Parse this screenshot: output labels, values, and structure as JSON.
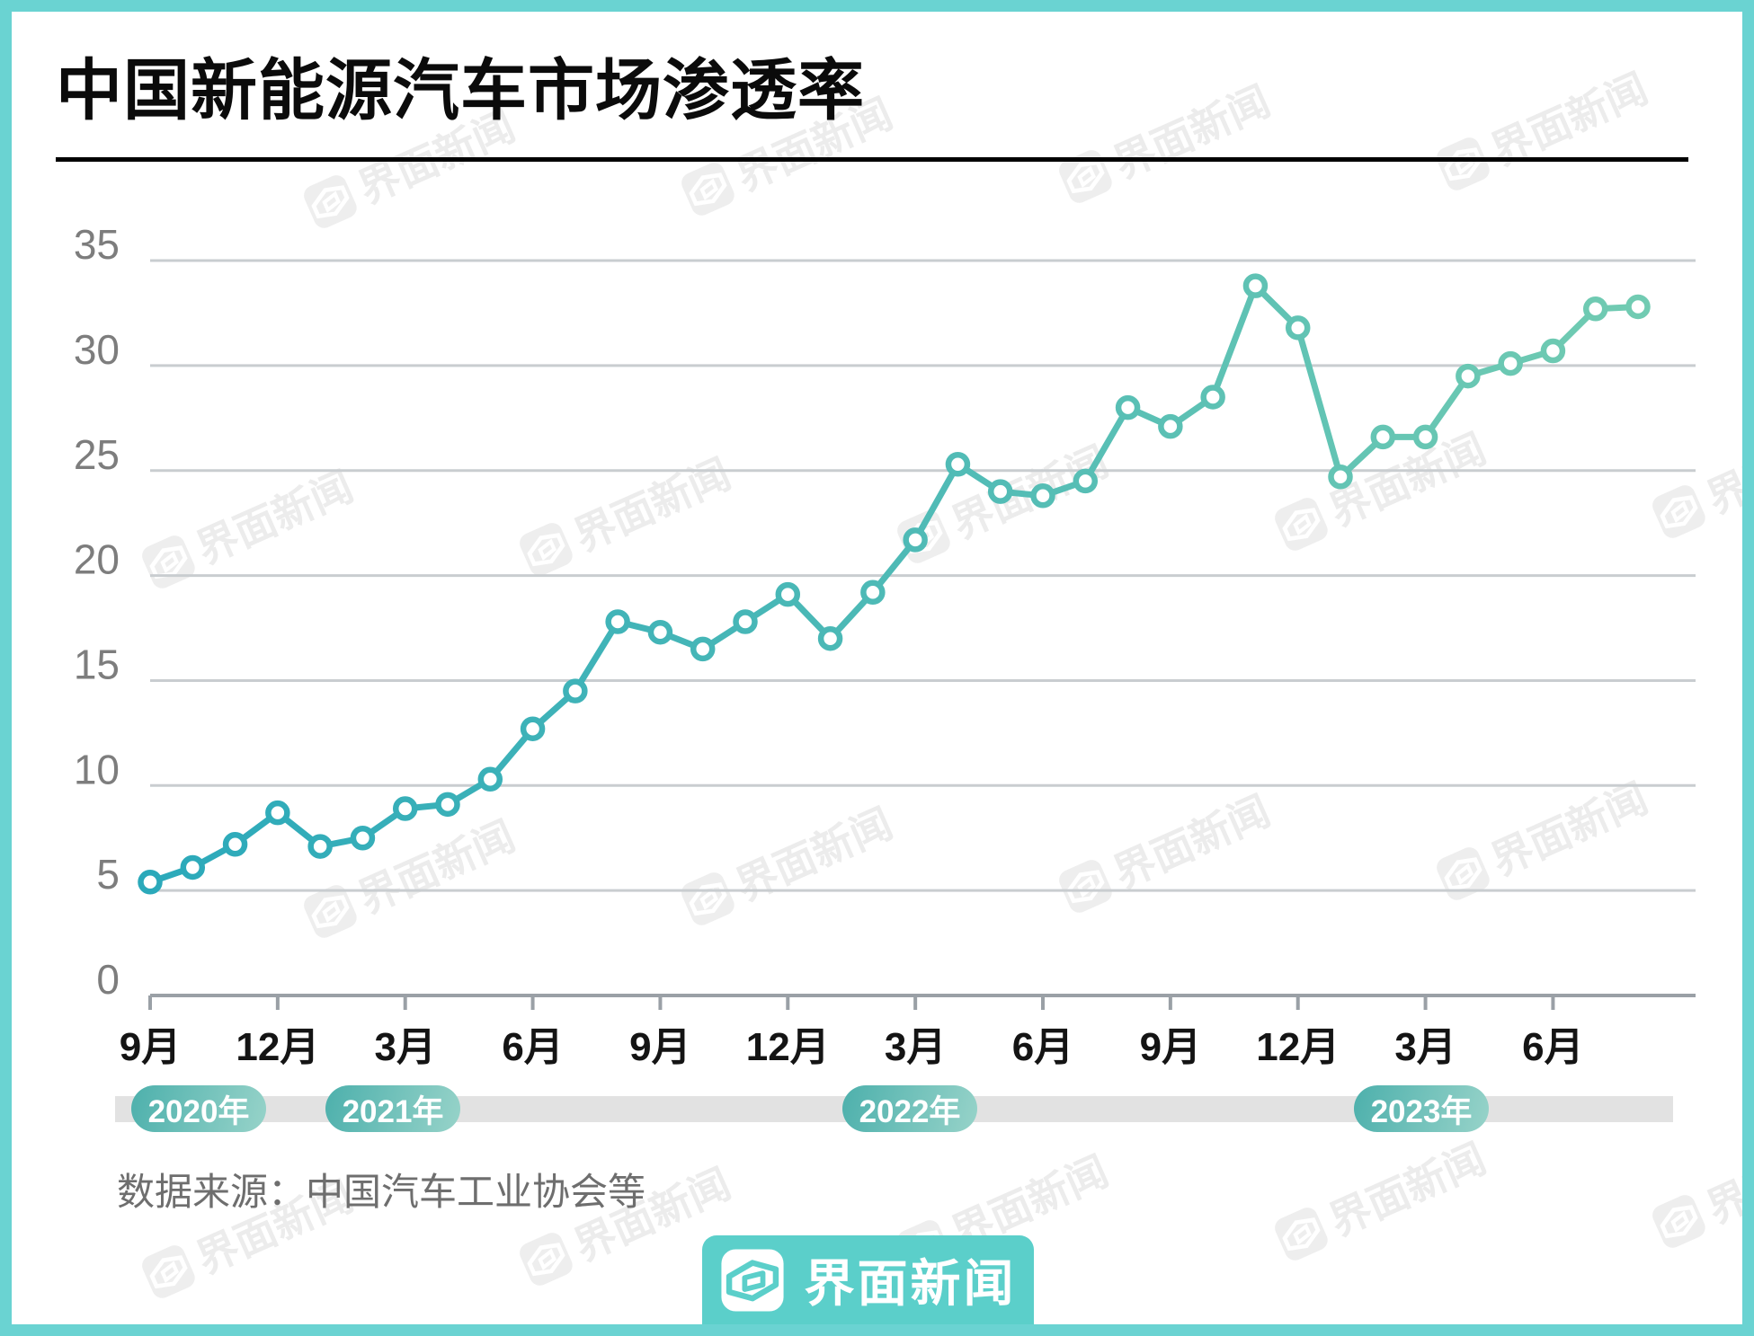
{
  "page": {
    "title": "中国新能源汽车市场渗透率"
  },
  "chart_data": {
    "type": "line",
    "title": "中国新能源汽车市场渗透率",
    "unit": "%",
    "x_start": "2020年9月",
    "x_end": "2023年8月",
    "x_tick_every": 3,
    "x_tick_labels": [
      "9月",
      "12月",
      "3月",
      "6月",
      "9月",
      "12月",
      "3月",
      "6月",
      "9月",
      "12月",
      "3月",
      "6月"
    ],
    "values": [
      5.4,
      6.1,
      7.2,
      8.7,
      7.1,
      7.5,
      8.9,
      9.1,
      10.3,
      12.7,
      14.5,
      17.8,
      17.3,
      16.5,
      17.8,
      19.1,
      17.0,
      19.2,
      21.7,
      25.3,
      24.0,
      23.8,
      24.5,
      28.0,
      27.1,
      28.5,
      33.8,
      31.8,
      24.7,
      26.6,
      26.6,
      29.5,
      30.1,
      30.7,
      32.7,
      32.8
    ],
    "ylim": [
      0,
      35
    ],
    "yticks": [
      0,
      5,
      10,
      15,
      20,
      25,
      30,
      35
    ],
    "grid": true,
    "legend": "none"
  },
  "year_bar": {
    "items": [
      {
        "label": "2020年"
      },
      {
        "label": "2021年"
      },
      {
        "label": "2022年"
      },
      {
        "label": "2023年"
      }
    ]
  },
  "source": {
    "text": "数据来源：中国汽车工业协会等"
  },
  "footer": {
    "brand": "界面新闻"
  },
  "watermark": {
    "text": "界面新闻"
  },
  "colors": {
    "border_teal": "#6ad3d2",
    "footer_teal": "#5bcfca",
    "line_start": "#2ba9ba",
    "line_end": "#71cbb2",
    "grid": "#c9cdd0",
    "axis": "#9aa0a6",
    "y_label": "#7d7d7d",
    "x_label": "#141414",
    "pill_start": "#4db0ac",
    "pill_end": "#97d3c9"
  }
}
